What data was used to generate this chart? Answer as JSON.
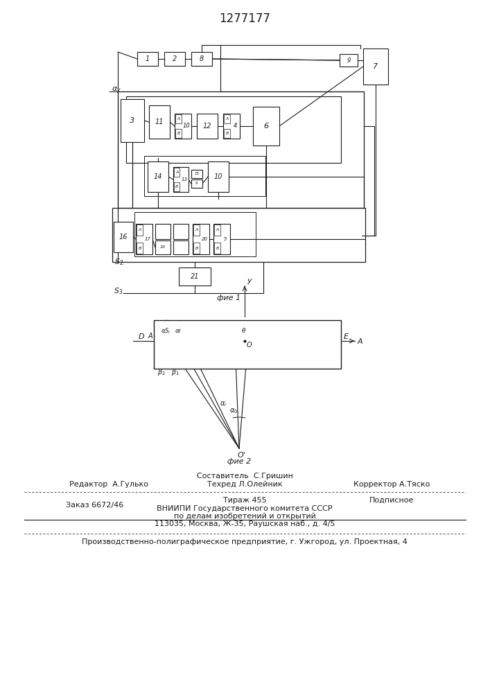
{
  "title": "1277177",
  "fig1_caption": "фие 1",
  "fig2_caption": "фие 2",
  "line_color": "#1a1a1a",
  "editor_line": "Редактор  А.Гулько",
  "composer_line": "Составитель  С.Гришин",
  "techred_line": "Техред Л.Олейник",
  "corrector_line": "Корректор А.Тяско",
  "order_line": "Заказ 6672/46",
  "tirage_line": "Тираж 455",
  "podpisnoe_line": "Подписное",
  "vniiipi_line1": "ВНИИПИ Государственного комитета СССР",
  "vniiipi_line2": "по делам изобретений и открытий",
  "vniiipi_line3": "113035, Москва, Ж-35, Раушская наб., д. 4/5",
  "production_line": "Производственно-полиграфическое предприятие, г. Ужгород, ул. Проектная, 4"
}
